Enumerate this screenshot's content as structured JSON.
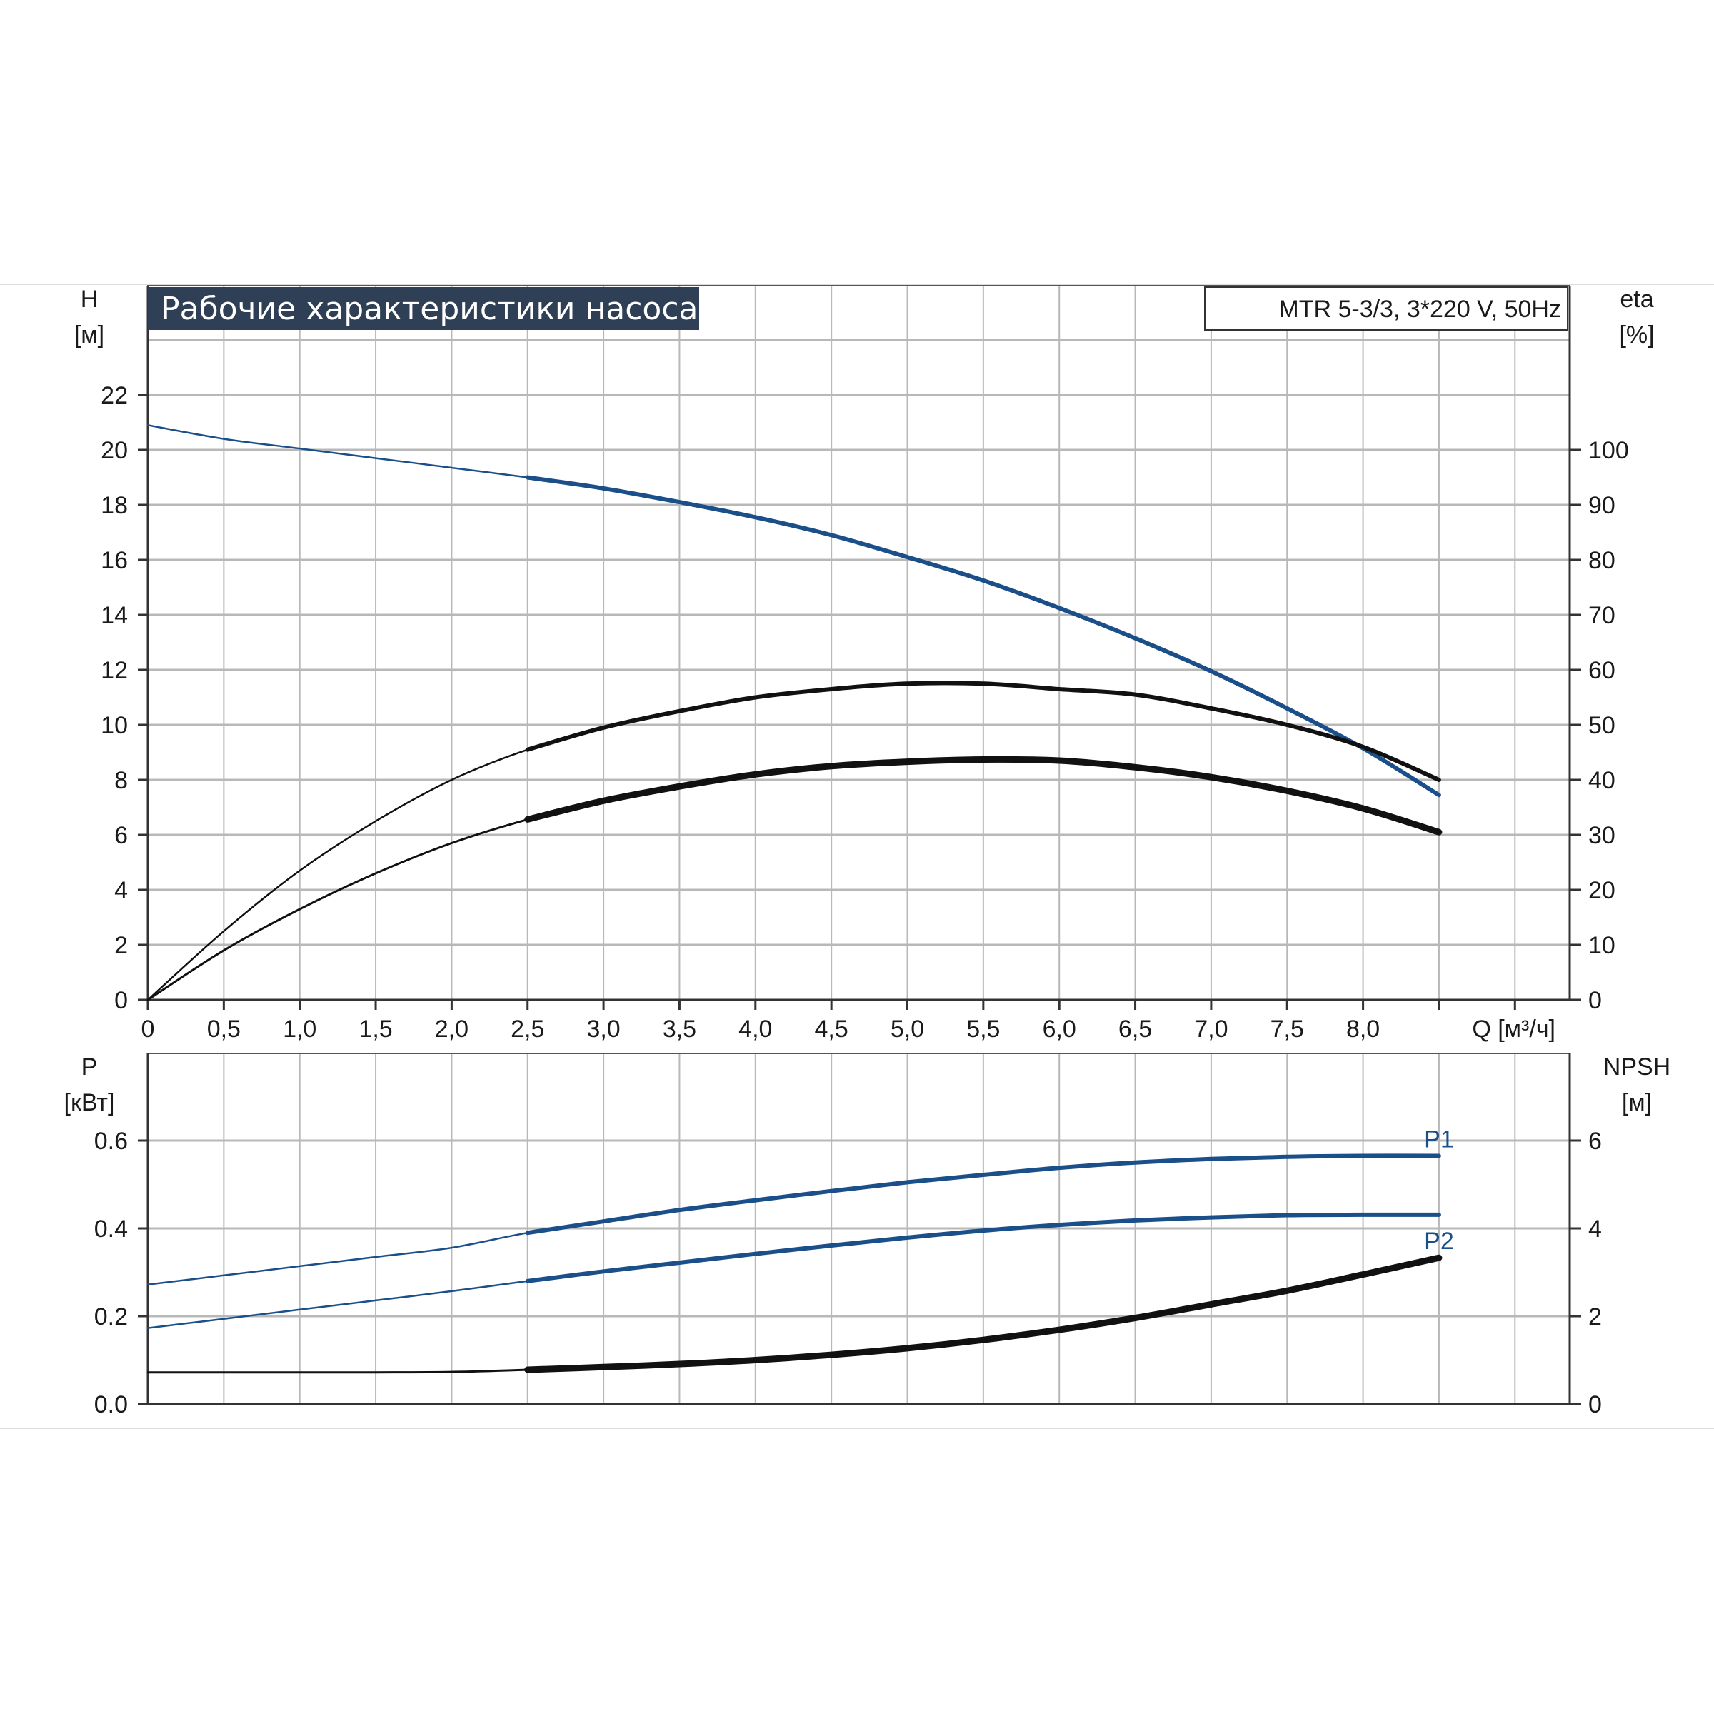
{
  "colors": {
    "blue": "#1b4f8a",
    "black": "#111111",
    "grid": "#b8b8b8",
    "title_bg": "#2f3f55"
  },
  "title": "Рабочие характеристики насоса",
  "model": "MTR 5-3/3, 3*220 V, 50Hz",
  "chart_data": [
    {
      "type": "line",
      "panel": "top",
      "xlabel": "Q [м³/ч]",
      "xlim": [
        0,
        9.0
      ],
      "x_ticks": [
        "0",
        "0,5",
        "1,0",
        "1,5",
        "2,0",
        "2,5",
        "3,0",
        "3,5",
        "4,0",
        "4,5",
        "5,0",
        "5,5",
        "6,0",
        "6,5",
        "7,0",
        "7,5",
        "8,0"
      ],
      "ylabel_left": {
        "name": "H",
        "unit": "[м]"
      },
      "ylim_left": [
        0,
        22
      ],
      "y_ticks_left": [
        "0",
        "2",
        "4",
        "6",
        "8",
        "10",
        "12",
        "14",
        "16",
        "18",
        "20",
        "22"
      ],
      "ylabel_right": {
        "name": "eta",
        "unit": "[%]"
      },
      "ylim_right": [
        0,
        100
      ],
      "y_ticks_right": [
        "0",
        "10",
        "20",
        "30",
        "40",
        "50",
        "60",
        "70",
        "80",
        "90",
        "100"
      ],
      "grid": true,
      "series": [
        {
          "color": "blue",
          "axis": "left",
          "x": [
            0,
            0.5,
            1.0,
            1.5,
            2.0,
            2.5,
            3.0,
            3.5,
            4.0,
            4.5,
            5.0,
            5.5,
            6.0,
            6.5,
            7.0,
            7.5,
            8.0,
            8.5
          ],
          "y": [
            20.9,
            20.4,
            20.05,
            19.7,
            19.35,
            19.0,
            18.6,
            18.1,
            17.55,
            16.9,
            16.1,
            15.25,
            14.25,
            13.15,
            11.95,
            10.6,
            9.15,
            7.45
          ],
          "duty_from": 2.5
        },
        {
          "color": "black",
          "axis": "right",
          "x": [
            0,
            0.5,
            1.0,
            1.5,
            2.0,
            2.5,
            3.0,
            3.5,
            4.0,
            4.5,
            5.0,
            5.5,
            6.0,
            6.5,
            7.0,
            7.5,
            8.0,
            8.5
          ],
          "y": [
            0,
            12.5,
            23.5,
            32.5,
            40,
            45.5,
            49.5,
            52.5,
            55,
            56.5,
            57.5,
            57.5,
            56.5,
            55.5,
            53,
            50,
            46,
            40
          ],
          "duty_from": 2.5
        },
        {
          "color": "black",
          "axis": "right",
          "x": [
            0,
            0.5,
            1.0,
            1.5,
            2.0,
            2.5,
            3.0,
            3.5,
            4.0,
            4.5,
            5.0,
            5.5,
            6.0,
            6.5,
            7.0,
            7.5,
            8.0,
            8.5
          ],
          "y": [
            0,
            9,
            16.5,
            23,
            28.5,
            32.8,
            36.2,
            38.8,
            41,
            42.5,
            43.3,
            43.7,
            43.5,
            42.3,
            40.5,
            38,
            34.8,
            30.5
          ],
          "duty_from": 2.5,
          "heavy": true
        }
      ]
    },
    {
      "type": "line",
      "panel": "bottom",
      "xlim": [
        0,
        9.0
      ],
      "ylabel_left": {
        "name": "P",
        "unit": "[кВт]"
      },
      "ylim_left": [
        0,
        0.8
      ],
      "y_ticks_left": [
        "0.0",
        "0.2",
        "0.4",
        "0.6"
      ],
      "ylabel_right": {
        "name": "NPSH",
        "unit": "[м]"
      },
      "ylim_right": [
        0,
        8
      ],
      "y_ticks_right": [
        "0",
        "2",
        "4",
        "6"
      ],
      "grid": true,
      "series": [
        {
          "name": "P1",
          "color": "blue",
          "axis": "left",
          "x": [
            0,
            0.5,
            1.0,
            1.5,
            2.0,
            2.5,
            3.0,
            3.5,
            4.0,
            4.5,
            5.0,
            5.5,
            6.0,
            6.5,
            7.0,
            7.5,
            8.0,
            8.5
          ],
          "y": [
            0.272,
            0.293,
            0.314,
            0.335,
            0.356,
            0.39,
            0.416,
            0.442,
            0.464,
            0.485,
            0.505,
            0.522,
            0.538,
            0.55,
            0.558,
            0.563,
            0.565,
            0.565
          ],
          "duty_from": 2.5
        },
        {
          "name": "P2",
          "color": "blue",
          "axis": "left",
          "x": [
            0,
            0.5,
            1.0,
            1.5,
            2.0,
            2.5,
            3.0,
            3.5,
            4.0,
            4.5,
            5.0,
            5.5,
            6.0,
            6.5,
            7.0,
            7.5,
            8.0,
            8.5
          ],
          "y": [
            0.173,
            0.194,
            0.215,
            0.236,
            0.257,
            0.28,
            0.302,
            0.322,
            0.342,
            0.361,
            0.379,
            0.395,
            0.408,
            0.418,
            0.425,
            0.43,
            0.431,
            0.431
          ],
          "duty_from": 2.5
        },
        {
          "color": "black",
          "axis": "right",
          "x": [
            0,
            0.5,
            1.0,
            1.5,
            2.0,
            2.5,
            3.0,
            3.5,
            4.0,
            4.5,
            5.0,
            5.5,
            6.0,
            6.5,
            7.0,
            7.5,
            8.0,
            8.5
          ],
          "y": [
            0.72,
            0.72,
            0.72,
            0.72,
            0.73,
            0.78,
            0.84,
            0.91,
            1.0,
            1.12,
            1.27,
            1.46,
            1.69,
            1.96,
            2.27,
            2.58,
            2.95,
            3.33
          ],
          "duty_from": 2.5,
          "heavy": true
        }
      ]
    }
  ]
}
